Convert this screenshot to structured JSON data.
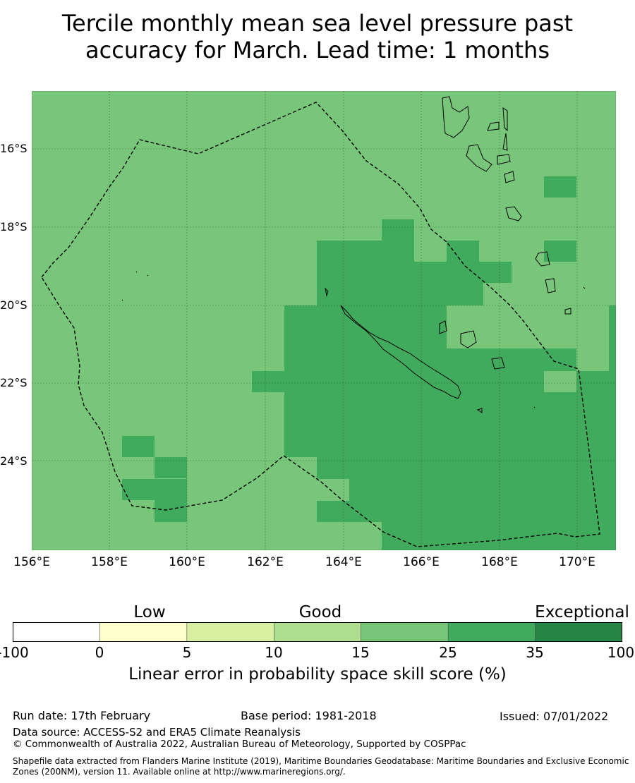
{
  "title_line1": "Tercile monthly mean sea level pressure past",
  "title_line2": "accuracy for March. Lead time: 1 months",
  "map": {
    "lon_range": [
      156.0,
      171.0
    ],
    "lat_range": [
      -26.4,
      -14.5
    ],
    "lat_labels": [
      "16°S",
      "18°S",
      "20°S",
      "22°S",
      "24°S"
    ],
    "lon_labels": [
      "156°E",
      "158°E",
      "160°E",
      "162°E",
      "164°E",
      "166°E",
      "168°E",
      "170°E"
    ],
    "grid": "dashed",
    "colors": {
      "band_15_25": "#78c679",
      "band_25_35": "#41ab5d"
    }
  },
  "colorbar": {
    "categories": [
      "Low",
      "Good",
      "Exceptional"
    ],
    "ticks": [
      "-100",
      "0",
      "5",
      "10",
      "15",
      "25",
      "35",
      "100"
    ],
    "colors": [
      "#ffffff",
      "#ffffcc",
      "#d9f0a3",
      "#addd8e",
      "#78c679",
      "#41ab5d",
      "#238443"
    ],
    "label": "Linear error in probability space skill score (%)"
  },
  "footer": {
    "run_date": "Run date: 17th February",
    "base_period": "Base period: 1981-2018",
    "issued": "Issued: 07/01/2022",
    "data_source": "Data source: ACCESS-S2 and ERA5 Climate Reanalysis",
    "copyright": "© Commonwealth of Australia 2022, Australian Bureau of Meteorology, Supported by COSPPac",
    "shapefile": "Shapefile data extracted from Flanders Marine Institute (2019), Maritime Boundaries Geodatabase: Maritime Boundaries and Exclusive Economic Zones (200NM), version 11. Available online at http://www.marineregions.org/."
  }
}
